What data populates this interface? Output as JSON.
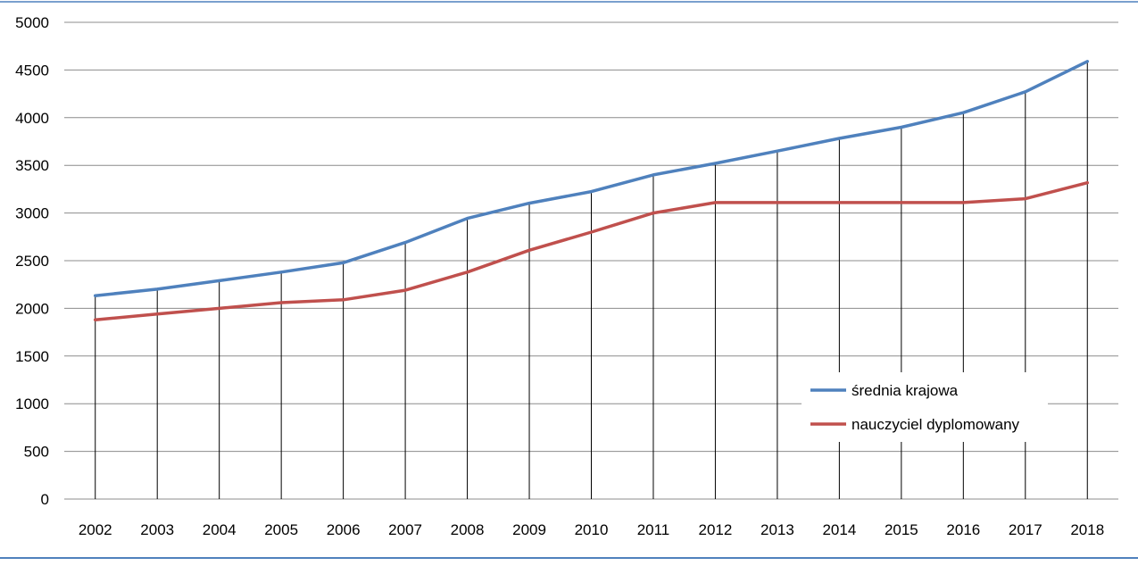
{
  "chart_data": {
    "type": "line",
    "title": "",
    "xlabel": "",
    "ylabel": "",
    "categories": [
      "2002",
      "2003",
      "2004",
      "2005",
      "2006",
      "2007",
      "2008",
      "2009",
      "2010",
      "2011",
      "2012",
      "2013",
      "2014",
      "2015",
      "2016",
      "2017",
      "2018"
    ],
    "ylim": [
      0,
      5000
    ],
    "yticks": [
      "0",
      "500",
      "1000",
      "1500",
      "2000",
      "2500",
      "3000",
      "3500",
      "4000",
      "4500",
      "5000"
    ],
    "grid": "horizontal",
    "drop_lines": true,
    "legend_position": "lower-right",
    "series": [
      {
        "name": "średnia krajowa",
        "color": "#4F81BD",
        "values": [
          2133,
          2201,
          2290,
          2380,
          2478,
          2691,
          2944,
          3103,
          3225,
          3400,
          3521,
          3650,
          3783,
          3900,
          4052,
          4272,
          4590
        ]
      },
      {
        "name": "nauczyciel dyplomowany",
        "color": "#C0504D",
        "values": [
          1880,
          1940,
          2000,
          2060,
          2090,
          2190,
          2380,
          2610,
          2800,
          3000,
          3110,
          3110,
          3110,
          3110,
          3110,
          3150,
          3317
        ]
      }
    ]
  },
  "colors": {
    "frame_line": "#4F81BD",
    "gridline": "#8C8C8C",
    "drop_line": "#000000"
  }
}
